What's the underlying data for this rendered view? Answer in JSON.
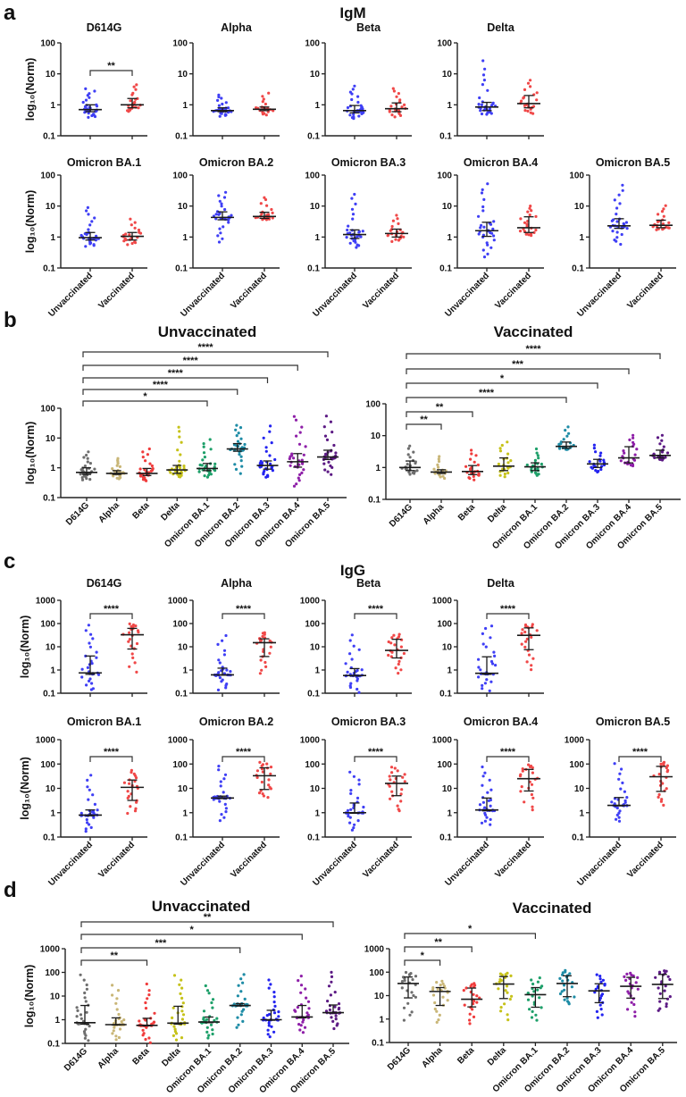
{
  "figure": {
    "panel_letters": [
      "a",
      "b",
      "c",
      "d"
    ],
    "igm_title": "IgM",
    "igg_title": "IgG",
    "unvaccinated_title": "Unvaccinated",
    "vaccinated_title": "Vaccinated"
  },
  "chart_data": {
    "type": "scatter",
    "yscale": "log",
    "ylabel": "log₁₀(Norm)",
    "groups": [
      "Unvaccinated",
      "Vaccinated"
    ],
    "variants": [
      "D614G",
      "Alpha",
      "Beta",
      "Delta",
      "Omicron BA.1",
      "Omicron BA.2",
      "Omicron BA.3",
      "Omicron BA.4",
      "Omicron BA.5"
    ],
    "colors": {
      "unvaccinated": "#3f3ff5",
      "vaccinated": "#f04848",
      "summary": "#1a1a1a",
      "variants": [
        "#6e6e6e",
        "#c9b677",
        "#f03c3c",
        "#c6c21a",
        "#1ea06a",
        "#1e8ca6",
        "#2323f0",
        "#8e1fa8",
        "#5c1a84"
      ]
    },
    "IgM": {
      "ylim": [
        0.1,
        100
      ],
      "yticks": [
        0.1,
        1,
        10,
        100
      ],
      "ytick_labels": [
        "0.1",
        "1",
        "10",
        "100"
      ],
      "unvaccinated": [
        {
          "median": 0.7,
          "q1": 0.6,
          "q3": 1.0,
          "min": 0.38,
          "max": 3.6,
          "n": 30
        },
        {
          "median": 0.65,
          "q1": 0.6,
          "q3": 0.8,
          "min": 0.42,
          "max": 2.3,
          "n": 30
        },
        {
          "median": 0.65,
          "q1": 0.55,
          "q3": 0.95,
          "min": 0.35,
          "max": 4.5,
          "n": 30
        },
        {
          "median": 0.85,
          "q1": 0.65,
          "q3": 1.2,
          "min": 0.48,
          "max": 30,
          "n": 30
        },
        {
          "median": 0.95,
          "q1": 0.8,
          "q3": 1.4,
          "min": 0.48,
          "max": 10,
          "n": 30
        },
        {
          "median": 4.3,
          "q1": 3.6,
          "q3": 6.5,
          "min": 0.6,
          "max": 30,
          "n": 30
        },
        {
          "median": 1.2,
          "q1": 0.9,
          "q3": 1.7,
          "min": 0.45,
          "max": 28,
          "n": 30
        },
        {
          "median": 1.6,
          "q1": 1.05,
          "q3": 3.0,
          "min": 0.21,
          "max": 72,
          "n": 30
        },
        {
          "median": 2.3,
          "q1": 1.9,
          "q3": 3.9,
          "min": 0.55,
          "max": 60,
          "n": 30
        }
      ],
      "vaccinated": [
        {
          "median": 1.0,
          "q1": 0.8,
          "q3": 1.6,
          "min": 0.6,
          "max": 5.2,
          "n": 22
        },
        {
          "median": 0.72,
          "q1": 0.65,
          "q3": 0.85,
          "min": 0.45,
          "max": 2.5,
          "n": 22
        },
        {
          "median": 0.75,
          "q1": 0.6,
          "q3": 1.15,
          "min": 0.4,
          "max": 4.0,
          "n": 22
        },
        {
          "median": 1.1,
          "q1": 0.8,
          "q3": 2.0,
          "min": 0.5,
          "max": 7.0,
          "n": 22
        },
        {
          "median": 1.05,
          "q1": 0.8,
          "q3": 1.4,
          "min": 0.55,
          "max": 4.0,
          "n": 22
        },
        {
          "median": 4.6,
          "q1": 4.0,
          "q3": 6.3,
          "min": 3.6,
          "max": 21,
          "n": 22
        },
        {
          "median": 1.3,
          "q1": 1.0,
          "q3": 1.8,
          "min": 0.7,
          "max": 5.5,
          "n": 22
        },
        {
          "median": 2.0,
          "q1": 1.4,
          "q3": 4.5,
          "min": 1.1,
          "max": 11,
          "n": 22
        },
        {
          "median": 2.4,
          "q1": 2.0,
          "q3": 3.5,
          "min": 1.7,
          "max": 12,
          "n": 22
        }
      ],
      "sig_vaccinated_vs_unvaccinated": [
        "**",
        "",
        "",
        "",
        "",
        "",
        "",
        "",
        ""
      ],
      "sig_vs_D614G_unvaccinated": [
        {
          "target": 4,
          "label": "*"
        },
        {
          "target": 5,
          "label": "****"
        },
        {
          "target": 6,
          "label": "****"
        },
        {
          "target": 7,
          "label": "****"
        },
        {
          "target": 8,
          "label": "****"
        }
      ],
      "sig_vs_D614G_vaccinated": [
        {
          "target": 1,
          "label": "**"
        },
        {
          "target": 2,
          "label": "**"
        },
        {
          "target": 5,
          "label": "****"
        },
        {
          "target": 6,
          "label": "*"
        },
        {
          "target": 7,
          "label": "***"
        },
        {
          "target": 8,
          "label": "****"
        }
      ]
    },
    "IgG": {
      "ylim": [
        0.1,
        1000
      ],
      "yticks": [
        0.1,
        1,
        10,
        100,
        1000
      ],
      "ytick_labels": [
        "0.1",
        "1",
        "10",
        "100",
        "1000"
      ],
      "unvaccinated": [
        {
          "median": 0.75,
          "q1": 0.65,
          "q3": 4.0,
          "min": 0.12,
          "max": 95,
          "n": 30
        },
        {
          "median": 0.62,
          "q1": 0.6,
          "q3": 1.2,
          "min": 0.13,
          "max": 35,
          "n": 30
        },
        {
          "median": 0.58,
          "q1": 0.55,
          "q3": 1.15,
          "min": 0.1,
          "max": 36,
          "n": 30
        },
        {
          "median": 0.72,
          "q1": 0.65,
          "q3": 3.7,
          "min": 0.12,
          "max": 105,
          "n": 30
        },
        {
          "median": 0.8,
          "q1": 0.75,
          "q3": 1.3,
          "min": 0.15,
          "max": 38,
          "n": 30
        },
        {
          "median": 4.0,
          "q1": 3.8,
          "q3": 4.8,
          "min": 0.4,
          "max": 110,
          "n": 30
        },
        {
          "median": 1.0,
          "q1": 0.95,
          "q3": 2.5,
          "min": 0.17,
          "max": 60,
          "n": 30
        },
        {
          "median": 1.3,
          "q1": 1.2,
          "q3": 4.0,
          "min": 0.28,
          "max": 88,
          "n": 30
        },
        {
          "median": 2.0,
          "q1": 1.9,
          "q3": 4.2,
          "min": 0.4,
          "max": 120,
          "n": 30
        }
      ],
      "vaccinated": [
        {
          "median": 33,
          "q1": 8,
          "q3": 62,
          "min": 0.7,
          "max": 100,
          "n": 22
        },
        {
          "median": 15,
          "q1": 3.8,
          "q3": 22,
          "min": 0.6,
          "max": 45,
          "n": 22
        },
        {
          "median": 7,
          "q1": 3.3,
          "q3": 21,
          "min": 0.6,
          "max": 35,
          "n": 22
        },
        {
          "median": 31,
          "q1": 7.5,
          "q3": 65,
          "min": 0.75,
          "max": 95,
          "n": 22
        },
        {
          "median": 11,
          "q1": 3.2,
          "q3": 22,
          "min": 0.8,
          "max": 60,
          "n": 22
        },
        {
          "median": 33,
          "q1": 9,
          "q3": 70,
          "min": 4,
          "max": 120,
          "n": 22
        },
        {
          "median": 16,
          "q1": 5,
          "q3": 32,
          "min": 0.95,
          "max": 85,
          "n": 22
        },
        {
          "median": 25,
          "q1": 7.8,
          "q3": 60,
          "min": 1.1,
          "max": 95,
          "n": 22
        },
        {
          "median": 30,
          "q1": 7.5,
          "q3": 80,
          "min": 1.9,
          "max": 120,
          "n": 22
        }
      ],
      "sig_vaccinated_vs_unvaccinated": [
        "****",
        "****",
        "****",
        "****",
        "****",
        "****",
        "****",
        "****",
        "****"
      ],
      "sig_vs_D614G_unvaccinated": [
        {
          "target": 2,
          "label": "**"
        },
        {
          "target": 5,
          "label": "***"
        },
        {
          "target": 7,
          "label": "*"
        },
        {
          "target": 8,
          "label": "**"
        }
      ],
      "sig_vs_D614G_vaccinated": [
        {
          "target": 1,
          "label": "*"
        },
        {
          "target": 2,
          "label": "**"
        },
        {
          "target": 4,
          "label": "*"
        }
      ]
    }
  }
}
